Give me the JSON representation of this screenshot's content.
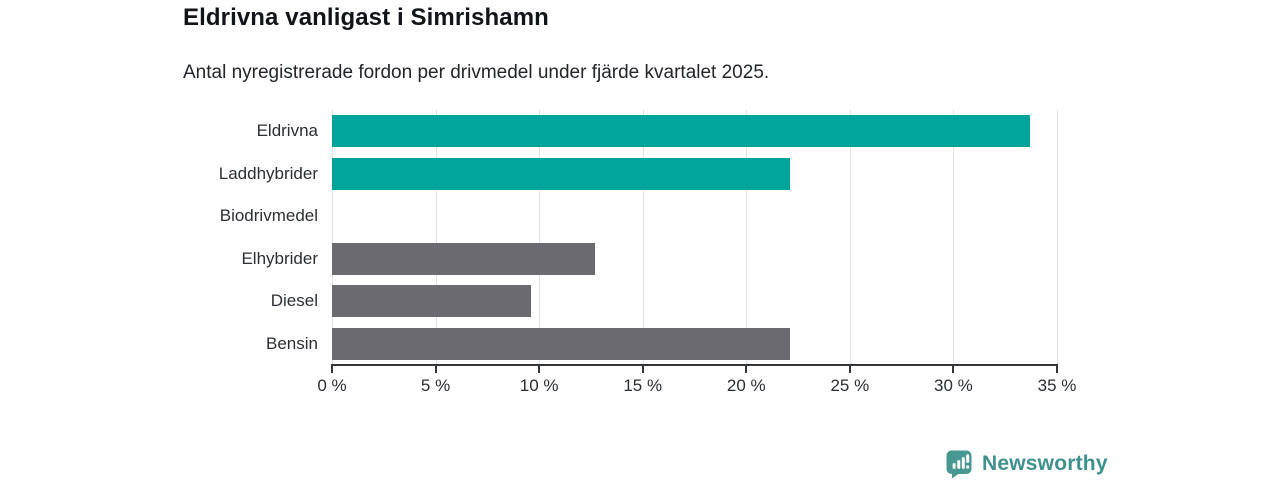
{
  "header": {
    "title": "Eldrivna vanligast i Simrishamn",
    "subtitle": "Antal nyregistrerade fordon per drivmedel under fjärde kvartalet 2025."
  },
  "chart_data": {
    "type": "bar",
    "orientation": "horizontal",
    "title": "Eldrivna vanligast i Simrishamn",
    "subtitle": "Antal nyregistrerade fordon per drivmedel under fjärde kvartalet 2025.",
    "categories": [
      "Eldrivna",
      "Laddhybrider",
      "Biodrivmedel",
      "Elhybrider",
      "Diesel",
      "Bensin"
    ],
    "values": [
      33.7,
      22.1,
      0,
      12.7,
      9.6,
      22.1
    ],
    "unit": "%",
    "xlim": [
      0,
      35
    ],
    "x_ticks": [
      0,
      5,
      10,
      15,
      20,
      25,
      30,
      35
    ],
    "x_tick_labels": [
      "0 %",
      "5 %",
      "10 %",
      "15 %",
      "20 %",
      "25 %",
      "30 %",
      "35 %"
    ],
    "bar_colors": [
      "#00a49a",
      "#00a49a",
      "#6a6a70",
      "#6a6a70",
      "#6a6a70",
      "#6a6a70"
    ],
    "highlight_color": "#00a49a",
    "default_color": "#6a6a70",
    "grid": "vertical",
    "gridline_color": "#e3e3e5",
    "axis_color": "#33373b",
    "legend": "none"
  },
  "footer": {
    "brand": "Newsworthy",
    "brand_color": "#3d918e",
    "logo_icon_color": "#479792",
    "logo_icon": "bar-chart-speech-bubble-icon"
  }
}
